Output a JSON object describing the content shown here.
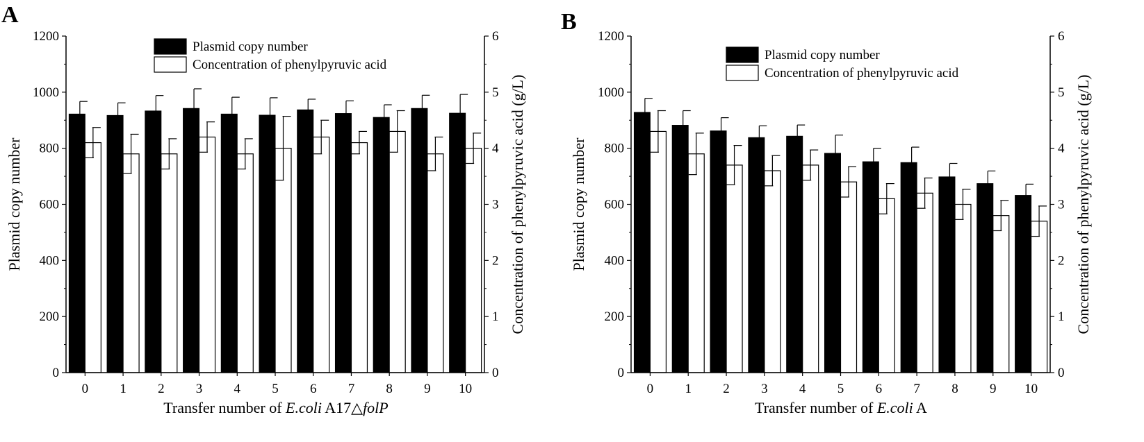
{
  "chart_data": [
    {
      "panel_label": "A",
      "type": "bar",
      "categories": [
        "0",
        "1",
        "2",
        "3",
        "4",
        "5",
        "6",
        "7",
        "8",
        "9",
        "10"
      ],
      "xlabel_parts": [
        {
          "text": "Transfer number of ",
          "italic": false
        },
        {
          "text": "E.coli",
          "italic": true
        },
        {
          "text": " A17",
          "italic": false
        },
        {
          "text": "△",
          "italic": false
        },
        {
          "text": "folP",
          "italic": true
        }
      ],
      "ylabel_left": "Plasmid copy number",
      "ylabel_right": "Concentration of phenylpyruvic acid (g/L)",
      "ylim_left": [
        0,
        1200
      ],
      "ylim_right": [
        0,
        6
      ],
      "yticks_left": [
        "0",
        "200",
        "400",
        "600",
        "800",
        "1000",
        "1200"
      ],
      "yticks_right": [
        "0",
        "1",
        "2",
        "3",
        "4",
        "5",
        "6"
      ],
      "legend": [
        "Plasmid copy number",
        "Concentration of phenylpyruvic acid"
      ],
      "series": [
        {
          "name": "Plasmid copy number",
          "axis": "left",
          "color": "#000000",
          "values": [
            922,
            917,
            933,
            942,
            922,
            918,
            937,
            924,
            910,
            942,
            925
          ],
          "errors": [
            45,
            45,
            55,
            70,
            60,
            62,
            38,
            45,
            45,
            47,
            67
          ]
        },
        {
          "name": "Concentration of phenylpyruvic acid",
          "axis": "right",
          "color": "#ffffff",
          "values": [
            4.1,
            3.9,
            3.9,
            4.2,
            3.9,
            4.0,
            4.2,
            4.1,
            4.3,
            3.9,
            4.0
          ],
          "errors": [
            0.27,
            0.35,
            0.27,
            0.27,
            0.27,
            0.57,
            0.3,
            0.2,
            0.37,
            0.3,
            0.27
          ]
        }
      ]
    },
    {
      "panel_label": "B",
      "type": "bar",
      "categories": [
        "0",
        "1",
        "2",
        "3",
        "4",
        "5",
        "6",
        "7",
        "8",
        "9",
        "10"
      ],
      "xlabel_parts": [
        {
          "text": "Transfer number of ",
          "italic": false
        },
        {
          "text": "E.coli",
          "italic": true
        },
        {
          "text": " A",
          "italic": false
        }
      ],
      "ylabel_left": "Plasmid copy number",
      "ylabel_right": "Concentration of phenylpyruvic acid (g/L)",
      "ylim_left": [
        0,
        1200
      ],
      "ylim_right": [
        0,
        6
      ],
      "yticks_left": [
        "0",
        "200",
        "400",
        "600",
        "800",
        "1000",
        "1200"
      ],
      "yticks_right": [
        "0",
        "1",
        "2",
        "3",
        "4",
        "5",
        "6"
      ],
      "legend": [
        "Plasmid copy number",
        "Concentration of phenylpyruvic acid"
      ],
      "series": [
        {
          "name": "Plasmid copy number",
          "axis": "left",
          "color": "#000000",
          "values": [
            928,
            882,
            862,
            838,
            843,
            782,
            752,
            749,
            698,
            674,
            632
          ],
          "errors": [
            50,
            52,
            47,
            42,
            40,
            65,
            48,
            55,
            48,
            45,
            40
          ]
        },
        {
          "name": "Concentration of phenylpyruvic acid",
          "axis": "right",
          "color": "#ffffff",
          "values": [
            4.3,
            3.9,
            3.7,
            3.6,
            3.7,
            3.4,
            3.1,
            3.2,
            3.0,
            2.8,
            2.7
          ],
          "errors": [
            0.37,
            0.37,
            0.35,
            0.27,
            0.27,
            0.27,
            0.27,
            0.27,
            0.27,
            0.27,
            0.27
          ]
        }
      ]
    }
  ]
}
